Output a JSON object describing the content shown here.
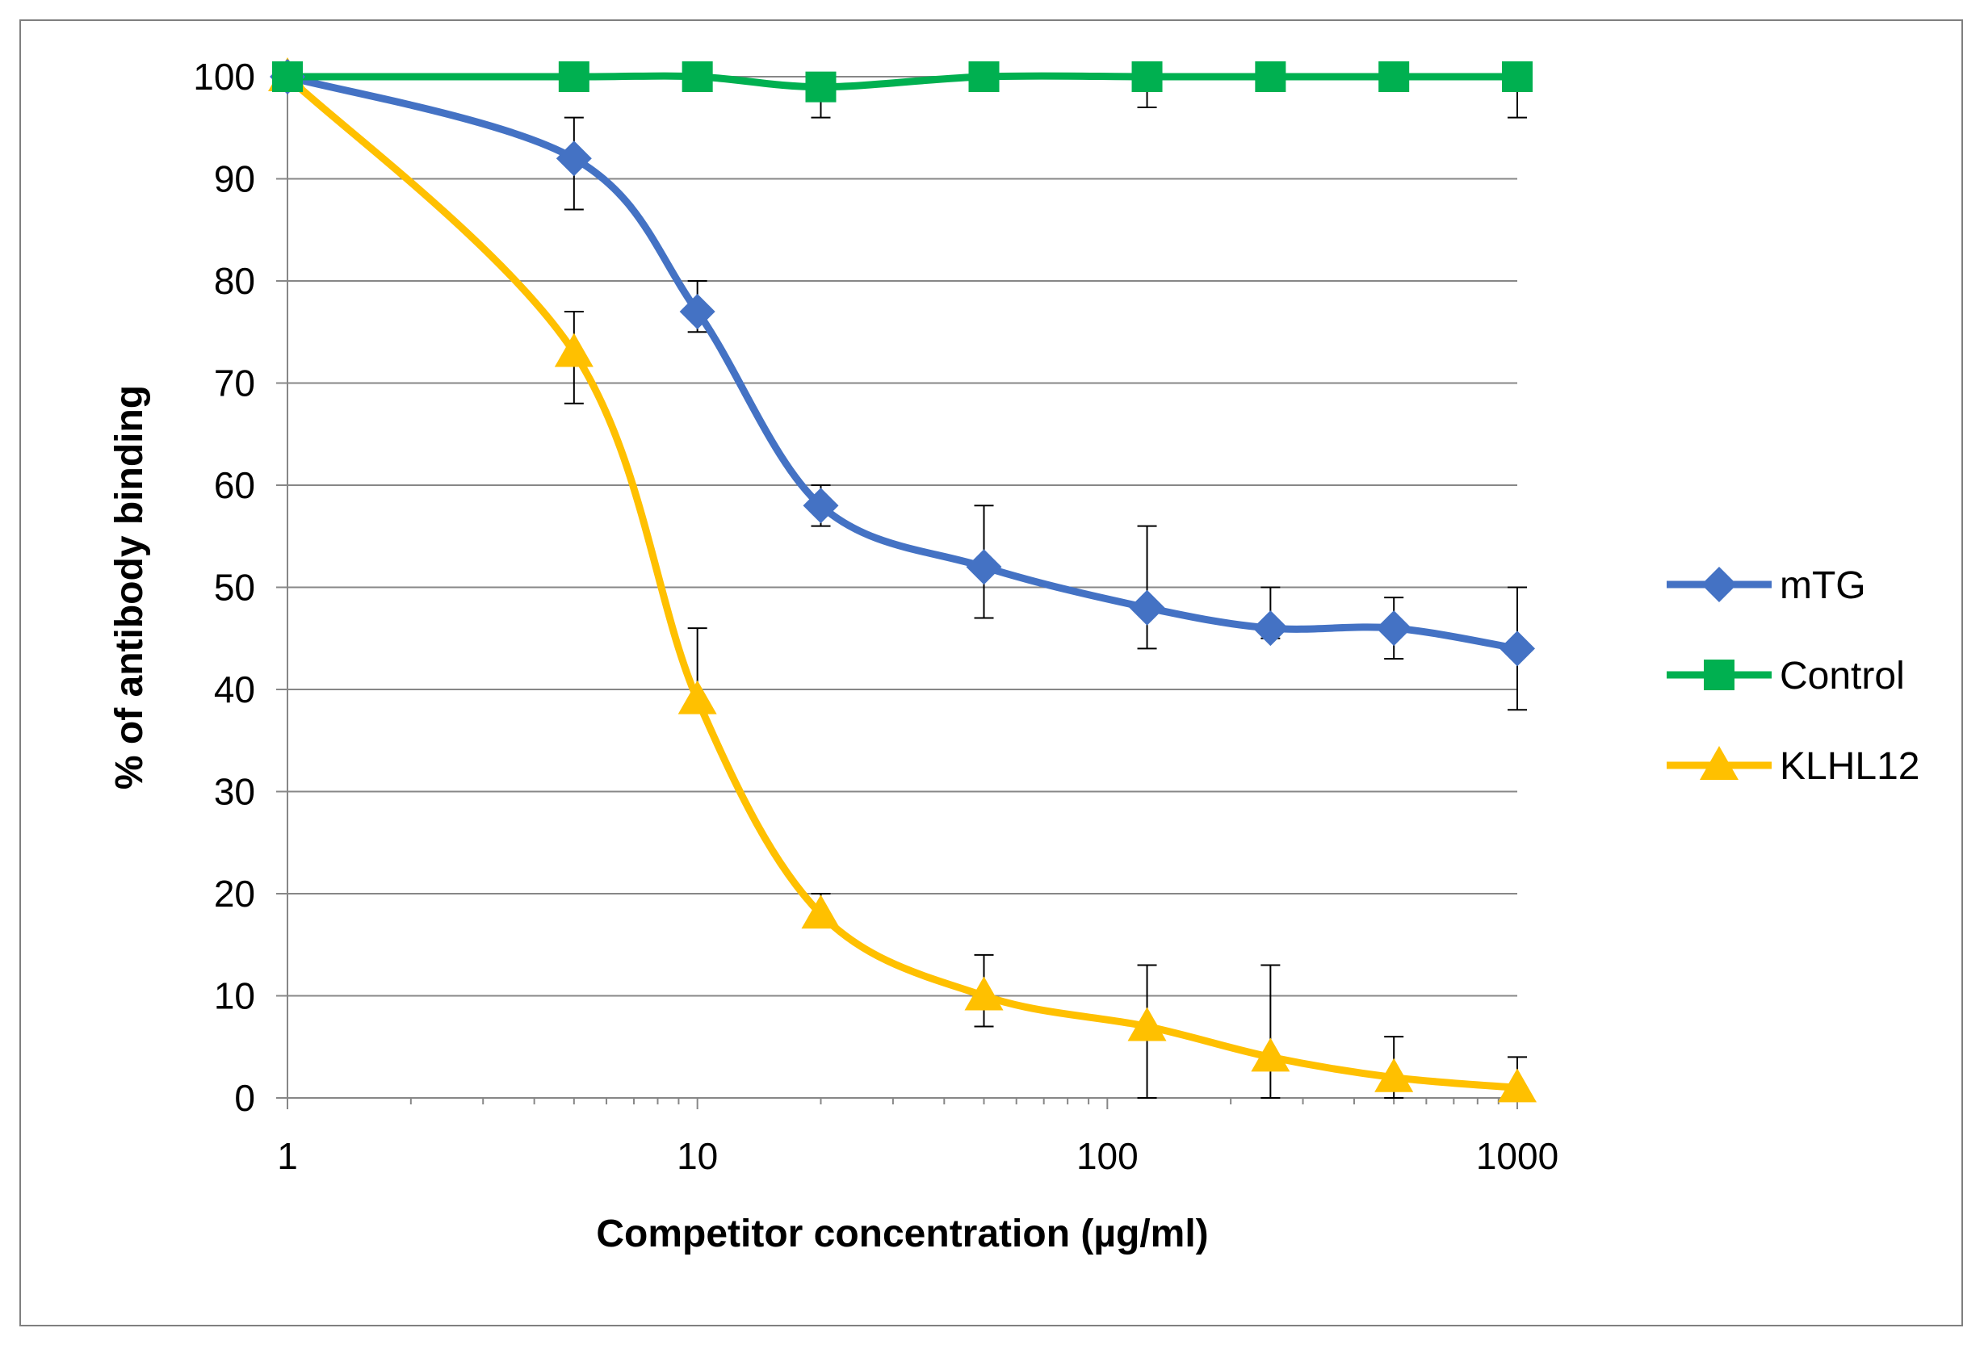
{
  "chart_data": {
    "type": "line",
    "title": "",
    "xlabel": "Competitor concentration (µg/ml)",
    "ylabel": "% of antibody binding",
    "x_scale": "log",
    "xlim": [
      1,
      1000
    ],
    "ylim": [
      0,
      100
    ],
    "x_ticks": [
      1,
      10,
      100,
      1000
    ],
    "x_tick_labels": [
      "1",
      "10",
      "100",
      "1000"
    ],
    "y_ticks": [
      0,
      10,
      20,
      30,
      40,
      50,
      60,
      70,
      80,
      90,
      100
    ],
    "y_tick_labels": [
      "0",
      "10",
      "20",
      "30",
      "40",
      "50",
      "60",
      "70",
      "80",
      "90",
      "100"
    ],
    "grid": "horizontal",
    "legend_position": "right",
    "smooth_lines": true,
    "x": [
      1,
      5,
      10,
      20,
      50,
      125,
      250,
      500,
      1000
    ],
    "series": [
      {
        "name": "mTG",
        "color": "#4472C4",
        "marker": "diamond",
        "values": [
          100,
          92,
          77,
          58,
          52,
          48,
          46,
          46,
          44
        ],
        "error_upper": [
          0,
          4,
          3,
          2,
          6,
          8,
          4,
          3,
          6
        ],
        "error_lower": [
          0,
          5,
          2,
          2,
          5,
          4,
          1,
          3,
          6
        ]
      },
      {
        "name": "Control",
        "color": "#00B050",
        "marker": "square",
        "values": [
          100,
          100,
          100,
          99,
          100,
          100,
          100,
          100,
          100
        ],
        "error_upper": [
          0,
          0,
          0,
          0,
          0,
          0,
          0,
          0,
          0
        ],
        "error_lower": [
          0,
          0,
          0,
          3,
          0,
          3,
          0,
          0,
          4
        ]
      },
      {
        "name": "KLHL12",
        "color": "#FFC000",
        "marker": "triangle",
        "values": [
          100,
          73,
          39,
          18,
          10,
          7,
          4,
          2,
          1
        ],
        "error_upper": [
          0,
          4,
          7,
          2,
          4,
          6,
          9,
          4,
          3
        ],
        "error_lower": [
          0,
          5,
          0,
          0,
          3,
          7,
          4,
          2,
          1
        ]
      }
    ]
  }
}
